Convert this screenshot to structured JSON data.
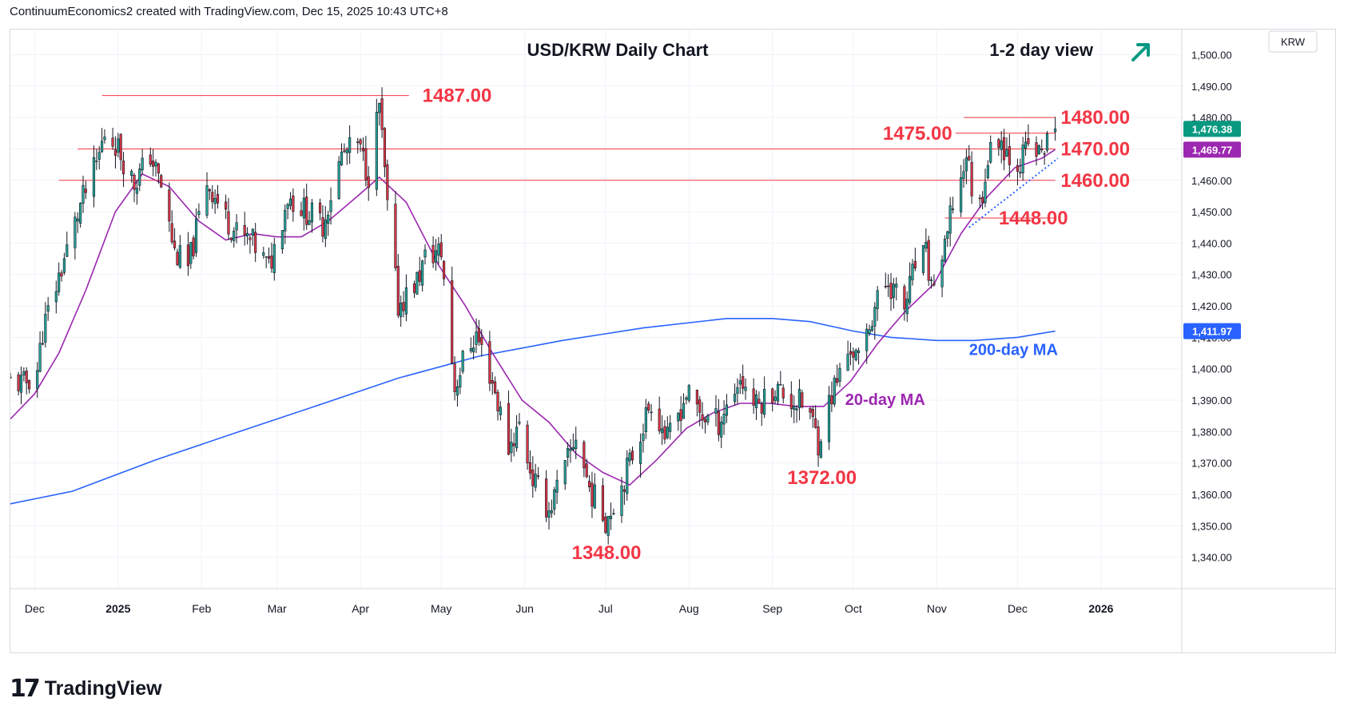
{
  "header": {
    "credit": "ContinuumEconomics2 created with TradingView.com, Dec 15, 2025 10:43 UTC+8"
  },
  "footer": {
    "brand": "TradingView",
    "logo_icon": "tradingview-logo-icon"
  },
  "colors": {
    "bull": "#26a69a",
    "bear": "#e03646",
    "level": "#f23645",
    "ma20": "#9c27b0",
    "ma200": "#2962ff",
    "trendline": "#2962ff",
    "arrow": "#089981"
  },
  "chart_data": {
    "type": "candlestick",
    "title": "USD/KRW Daily Chart",
    "view_label": "1-2 day view",
    "view_icon": "arrow-up-right-icon",
    "currency_label": "KRW",
    "last_price": "1,476.38",
    "ma20_value": "1,469.77",
    "ma200_value": "1,411.97",
    "ylim": [
      1330,
      1508
    ],
    "y_ticks": [
      {
        "value": 1500,
        "label": "1,500.00"
      },
      {
        "value": 1490,
        "label": "1,490.00"
      },
      {
        "value": 1480,
        "label": "1,480.00"
      },
      {
        "value": 1470,
        "label": "1,470.00"
      },
      {
        "value": 1460,
        "label": "1,460.00"
      },
      {
        "value": 1450,
        "label": "1,450.00"
      },
      {
        "value": 1440,
        "label": "1,440.00"
      },
      {
        "value": 1430,
        "label": "1,430.00"
      },
      {
        "value": 1420,
        "label": "1,420.00"
      },
      {
        "value": 1410,
        "label": "1,410.00"
      },
      {
        "value": 1400,
        "label": "1,400.00"
      },
      {
        "value": 1390,
        "label": "1,390.00"
      },
      {
        "value": 1380,
        "label": "1,380.00"
      },
      {
        "value": 1370,
        "label": "1,370.00"
      },
      {
        "value": 1360,
        "label": "1,360.00"
      },
      {
        "value": 1350,
        "label": "1,350.00"
      },
      {
        "value": 1340,
        "label": "1,340.00"
      }
    ],
    "x_ticks": [
      {
        "date": "2024-12-01",
        "label": "Dec",
        "bold": false
      },
      {
        "date": "2025-01-01",
        "label": "2025",
        "bold": true
      },
      {
        "date": "2025-02-01",
        "label": "Feb",
        "bold": false
      },
      {
        "date": "2025-03-01",
        "label": "Mar",
        "bold": false
      },
      {
        "date": "2025-04-01",
        "label": "Apr",
        "bold": false
      },
      {
        "date": "2025-05-01",
        "label": "May",
        "bold": false
      },
      {
        "date": "2025-06-01",
        "label": "Jun",
        "bold": false
      },
      {
        "date": "2025-07-01",
        "label": "Jul",
        "bold": false
      },
      {
        "date": "2025-08-01",
        "label": "Aug",
        "bold": false
      },
      {
        "date": "2025-09-01",
        "label": "Sep",
        "bold": false
      },
      {
        "date": "2025-10-01",
        "label": "Oct",
        "bold": false
      },
      {
        "date": "2025-11-01",
        "label": "Nov",
        "bold": false
      },
      {
        "date": "2025-12-01",
        "label": "Dec",
        "bold": false
      },
      {
        "date": "2026-01-01",
        "label": "2026",
        "bold": true
      }
    ],
    "x_range": [
      "2024-11-22",
      "2026-01-31"
    ],
    "price_path": [
      [
        "2024-11-22",
        1396
      ],
      [
        "2024-11-27",
        1395
      ],
      [
        "2024-12-02",
        1400
      ],
      [
        "2024-12-04",
        1412
      ],
      [
        "2024-12-12",
        1435
      ],
      [
        "2024-12-18",
        1452
      ],
      [
        "2024-12-24",
        1465
      ],
      [
        "2024-12-27",
        1475
      ],
      [
        "2024-12-31",
        1472
      ],
      [
        "2025-01-07",
        1459
      ],
      [
        "2025-01-13",
        1468
      ],
      [
        "2025-01-17",
        1458
      ],
      [
        "2025-01-22",
        1437
      ],
      [
        "2025-01-27",
        1432
      ],
      [
        "2025-02-03",
        1460
      ],
      [
        "2025-02-10",
        1448
      ],
      [
        "2025-02-14",
        1443
      ],
      [
        "2025-02-20",
        1440
      ],
      [
        "2025-02-26",
        1432
      ],
      [
        "2025-03-05",
        1455
      ],
      [
        "2025-03-12",
        1450
      ],
      [
        "2025-03-18",
        1446
      ],
      [
        "2025-03-25",
        1468
      ],
      [
        "2025-03-31",
        1471
      ],
      [
        "2025-04-04",
        1462
      ],
      [
        "2025-04-08",
        1484
      ],
      [
        "2025-04-11",
        1451
      ],
      [
        "2025-04-15",
        1420
      ],
      [
        "2025-04-22",
        1428
      ],
      [
        "2025-04-25",
        1435
      ],
      [
        "2025-04-29",
        1437
      ],
      [
        "2025-05-01",
        1437
      ],
      [
        "2025-05-06",
        1394
      ],
      [
        "2025-05-10",
        1405
      ],
      [
        "2025-05-14",
        1411
      ],
      [
        "2025-05-20",
        1396
      ],
      [
        "2025-05-26",
        1375
      ],
      [
        "2025-05-30",
        1382
      ],
      [
        "2025-06-04",
        1365
      ],
      [
        "2025-06-10",
        1355
      ],
      [
        "2025-06-16",
        1368
      ],
      [
        "2025-06-20",
        1379
      ],
      [
        "2025-06-25",
        1362
      ],
      [
        "2025-07-01",
        1352
      ],
      [
        "2025-07-07",
        1363
      ],
      [
        "2025-07-14",
        1380
      ],
      [
        "2025-07-18",
        1390
      ],
      [
        "2025-07-24",
        1377
      ],
      [
        "2025-07-31",
        1392
      ],
      [
        "2025-08-06",
        1385
      ],
      [
        "2025-08-12",
        1383
      ],
      [
        "2025-08-20",
        1397
      ],
      [
        "2025-08-26",
        1388
      ],
      [
        "2025-09-02",
        1394
      ],
      [
        "2025-09-08",
        1390
      ],
      [
        "2025-09-14",
        1388
      ],
      [
        "2025-09-18",
        1377
      ],
      [
        "2025-09-23",
        1392
      ],
      [
        "2025-09-30",
        1407
      ],
      [
        "2025-10-03",
        1402
      ],
      [
        "2025-10-09",
        1420
      ],
      [
        "2025-10-14",
        1428
      ],
      [
        "2025-10-20",
        1419
      ],
      [
        "2025-10-24",
        1433
      ],
      [
        "2025-10-28",
        1436
      ],
      [
        "2025-10-30",
        1426
      ],
      [
        "2025-11-04",
        1437
      ],
      [
        "2025-11-07",
        1453
      ],
      [
        "2025-11-10",
        1460
      ],
      [
        "2025-11-12",
        1469
      ],
      [
        "2025-11-14",
        1458
      ],
      [
        "2025-11-17",
        1452
      ],
      [
        "2025-11-20",
        1467
      ],
      [
        "2025-11-24",
        1474
      ],
      [
        "2025-11-28",
        1468
      ],
      [
        "2025-12-02",
        1466
      ],
      [
        "2025-12-05",
        1471
      ],
      [
        "2025-12-09",
        1468
      ],
      [
        "2025-12-12",
        1472
      ],
      [
        "2025-12-15",
        1476.38
      ]
    ],
    "ma20_path": [
      [
        "2024-11-22",
        1384
      ],
      [
        "2024-12-01",
        1392
      ],
      [
        "2024-12-10",
        1405
      ],
      [
        "2024-12-20",
        1425
      ],
      [
        "2024-12-31",
        1450
      ],
      [
        "2025-01-10",
        1462
      ],
      [
        "2025-01-20",
        1458
      ],
      [
        "2025-01-31",
        1447
      ],
      [
        "2025-02-10",
        1441
      ],
      [
        "2025-02-20",
        1443
      ],
      [
        "2025-03-01",
        1442
      ],
      [
        "2025-03-10",
        1442
      ],
      [
        "2025-03-20",
        1447
      ],
      [
        "2025-03-31",
        1455
      ],
      [
        "2025-04-08",
        1461
      ],
      [
        "2025-04-18",
        1453
      ],
      [
        "2025-04-30",
        1433
      ],
      [
        "2025-05-10",
        1420
      ],
      [
        "2025-05-20",
        1405
      ],
      [
        "2025-05-31",
        1390
      ],
      [
        "2025-06-10",
        1383
      ],
      [
        "2025-06-20",
        1373
      ],
      [
        "2025-06-30",
        1367
      ],
      [
        "2025-07-10",
        1363
      ],
      [
        "2025-07-20",
        1371
      ],
      [
        "2025-07-31",
        1381
      ],
      [
        "2025-08-10",
        1386
      ],
      [
        "2025-08-20",
        1389
      ],
      [
        "2025-08-31",
        1389
      ],
      [
        "2025-09-10",
        1388
      ],
      [
        "2025-09-20",
        1388
      ],
      [
        "2025-09-30",
        1396
      ],
      [
        "2025-10-10",
        1408
      ],
      [
        "2025-10-20",
        1418
      ],
      [
        "2025-10-31",
        1427
      ],
      [
        "2025-11-10",
        1443
      ],
      [
        "2025-11-20",
        1455
      ],
      [
        "2025-11-30",
        1464
      ],
      [
        "2025-12-10",
        1467
      ],
      [
        "2025-12-15",
        1469.77
      ]
    ],
    "ma200_path": [
      [
        "2024-11-22",
        1357
      ],
      [
        "2024-12-15",
        1361
      ],
      [
        "2025-01-15",
        1371
      ],
      [
        "2025-02-15",
        1380
      ],
      [
        "2025-03-15",
        1388
      ],
      [
        "2025-04-15",
        1397
      ],
      [
        "2025-05-15",
        1404
      ],
      [
        "2025-06-15",
        1409
      ],
      [
        "2025-07-15",
        1413
      ],
      [
        "2025-08-15",
        1416
      ],
      [
        "2025-09-01",
        1416
      ],
      [
        "2025-09-15",
        1415
      ],
      [
        "2025-10-01",
        1412
      ],
      [
        "2025-10-15",
        1410
      ],
      [
        "2025-11-01",
        1409
      ],
      [
        "2025-11-15",
        1409
      ],
      [
        "2025-12-01",
        1410
      ],
      [
        "2025-12-15",
        1411.97
      ]
    ],
    "levels": [
      {
        "value": 1487,
        "label": "1487.00",
        "from": "2024-12-26",
        "to": "2025-04-19",
        "label_date": "2025-04-24"
      },
      {
        "value": 1480,
        "label": "1480.00",
        "from": "2025-11-11",
        "to": "2025-12-15",
        "label_date": "2025-12-17"
      },
      {
        "value": 1475,
        "label": "1475.00",
        "from": "2025-11-08",
        "to": "2025-12-15",
        "label_date": "2025-10-12"
      },
      {
        "value": 1470,
        "label": "1470.00",
        "from": "2024-12-17",
        "to": "2025-12-15",
        "label_date": "2025-12-17"
      },
      {
        "value": 1460,
        "label": "1460.00",
        "from": "2024-12-10",
        "to": "2025-12-15",
        "label_date": "2025-12-17"
      },
      {
        "value": 1448,
        "label": "1448.00",
        "from": "2025-11-04",
        "to": "2025-12-15",
        "label_date": "2025-11-24"
      }
    ],
    "lows": [
      {
        "value": 1348,
        "label": "1348.00",
        "date": "2025-06-29"
      },
      {
        "value": 1372,
        "label": "1372.00",
        "date": "2025-09-17"
      }
    ],
    "trendline": {
      "from": [
        "2025-11-13",
        1445
      ],
      "to": [
        "2025-12-16",
        1467
      ]
    },
    "annotations": {
      "ma200_label": {
        "text": "200-day MA",
        "date": "2025-11-13",
        "value": 1408
      },
      "ma20_label": {
        "text": "20-day MA",
        "date": "2025-09-28",
        "value": 1390
      }
    }
  }
}
